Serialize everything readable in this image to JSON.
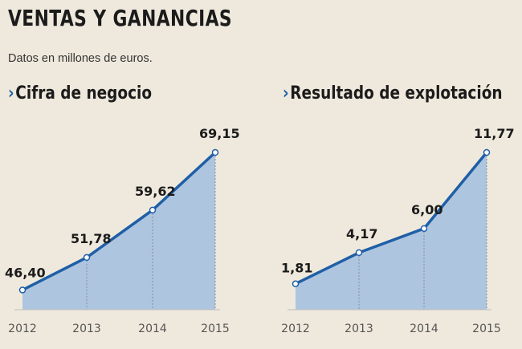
{
  "header": {
    "title": "VENTAS Y GANANCIAS",
    "subtitle": "Datos en millones de euros."
  },
  "colors": {
    "line": "#1f5fa6",
    "area": "#aec5e0",
    "marker_fill": "#ffffff",
    "background": "#efe9dd"
  },
  "chart_data": [
    {
      "type": "area",
      "title": "Cifra de negocio",
      "categories": [
        "2012",
        "2013",
        "2014",
        "2015"
      ],
      "values": [
        46.4,
        51.78,
        59.62,
        69.15
      ],
      "value_labels": [
        "46,40",
        "51,78",
        "59,62",
        "69,15"
      ],
      "ylim": [
        45.0,
        69.15
      ],
      "grid": false,
      "legend": "none"
    },
    {
      "type": "area",
      "title": "Resultado de explotación",
      "categories": [
        "2012",
        "2013",
        "2014",
        "2015"
      ],
      "values": [
        1.81,
        4.17,
        6.0,
        11.77
      ],
      "value_labels": [
        "1,81",
        "4,17",
        "6,00",
        "11,77"
      ],
      "ylim": [
        1.0,
        11.77
      ],
      "grid": false,
      "legend": "none"
    }
  ]
}
